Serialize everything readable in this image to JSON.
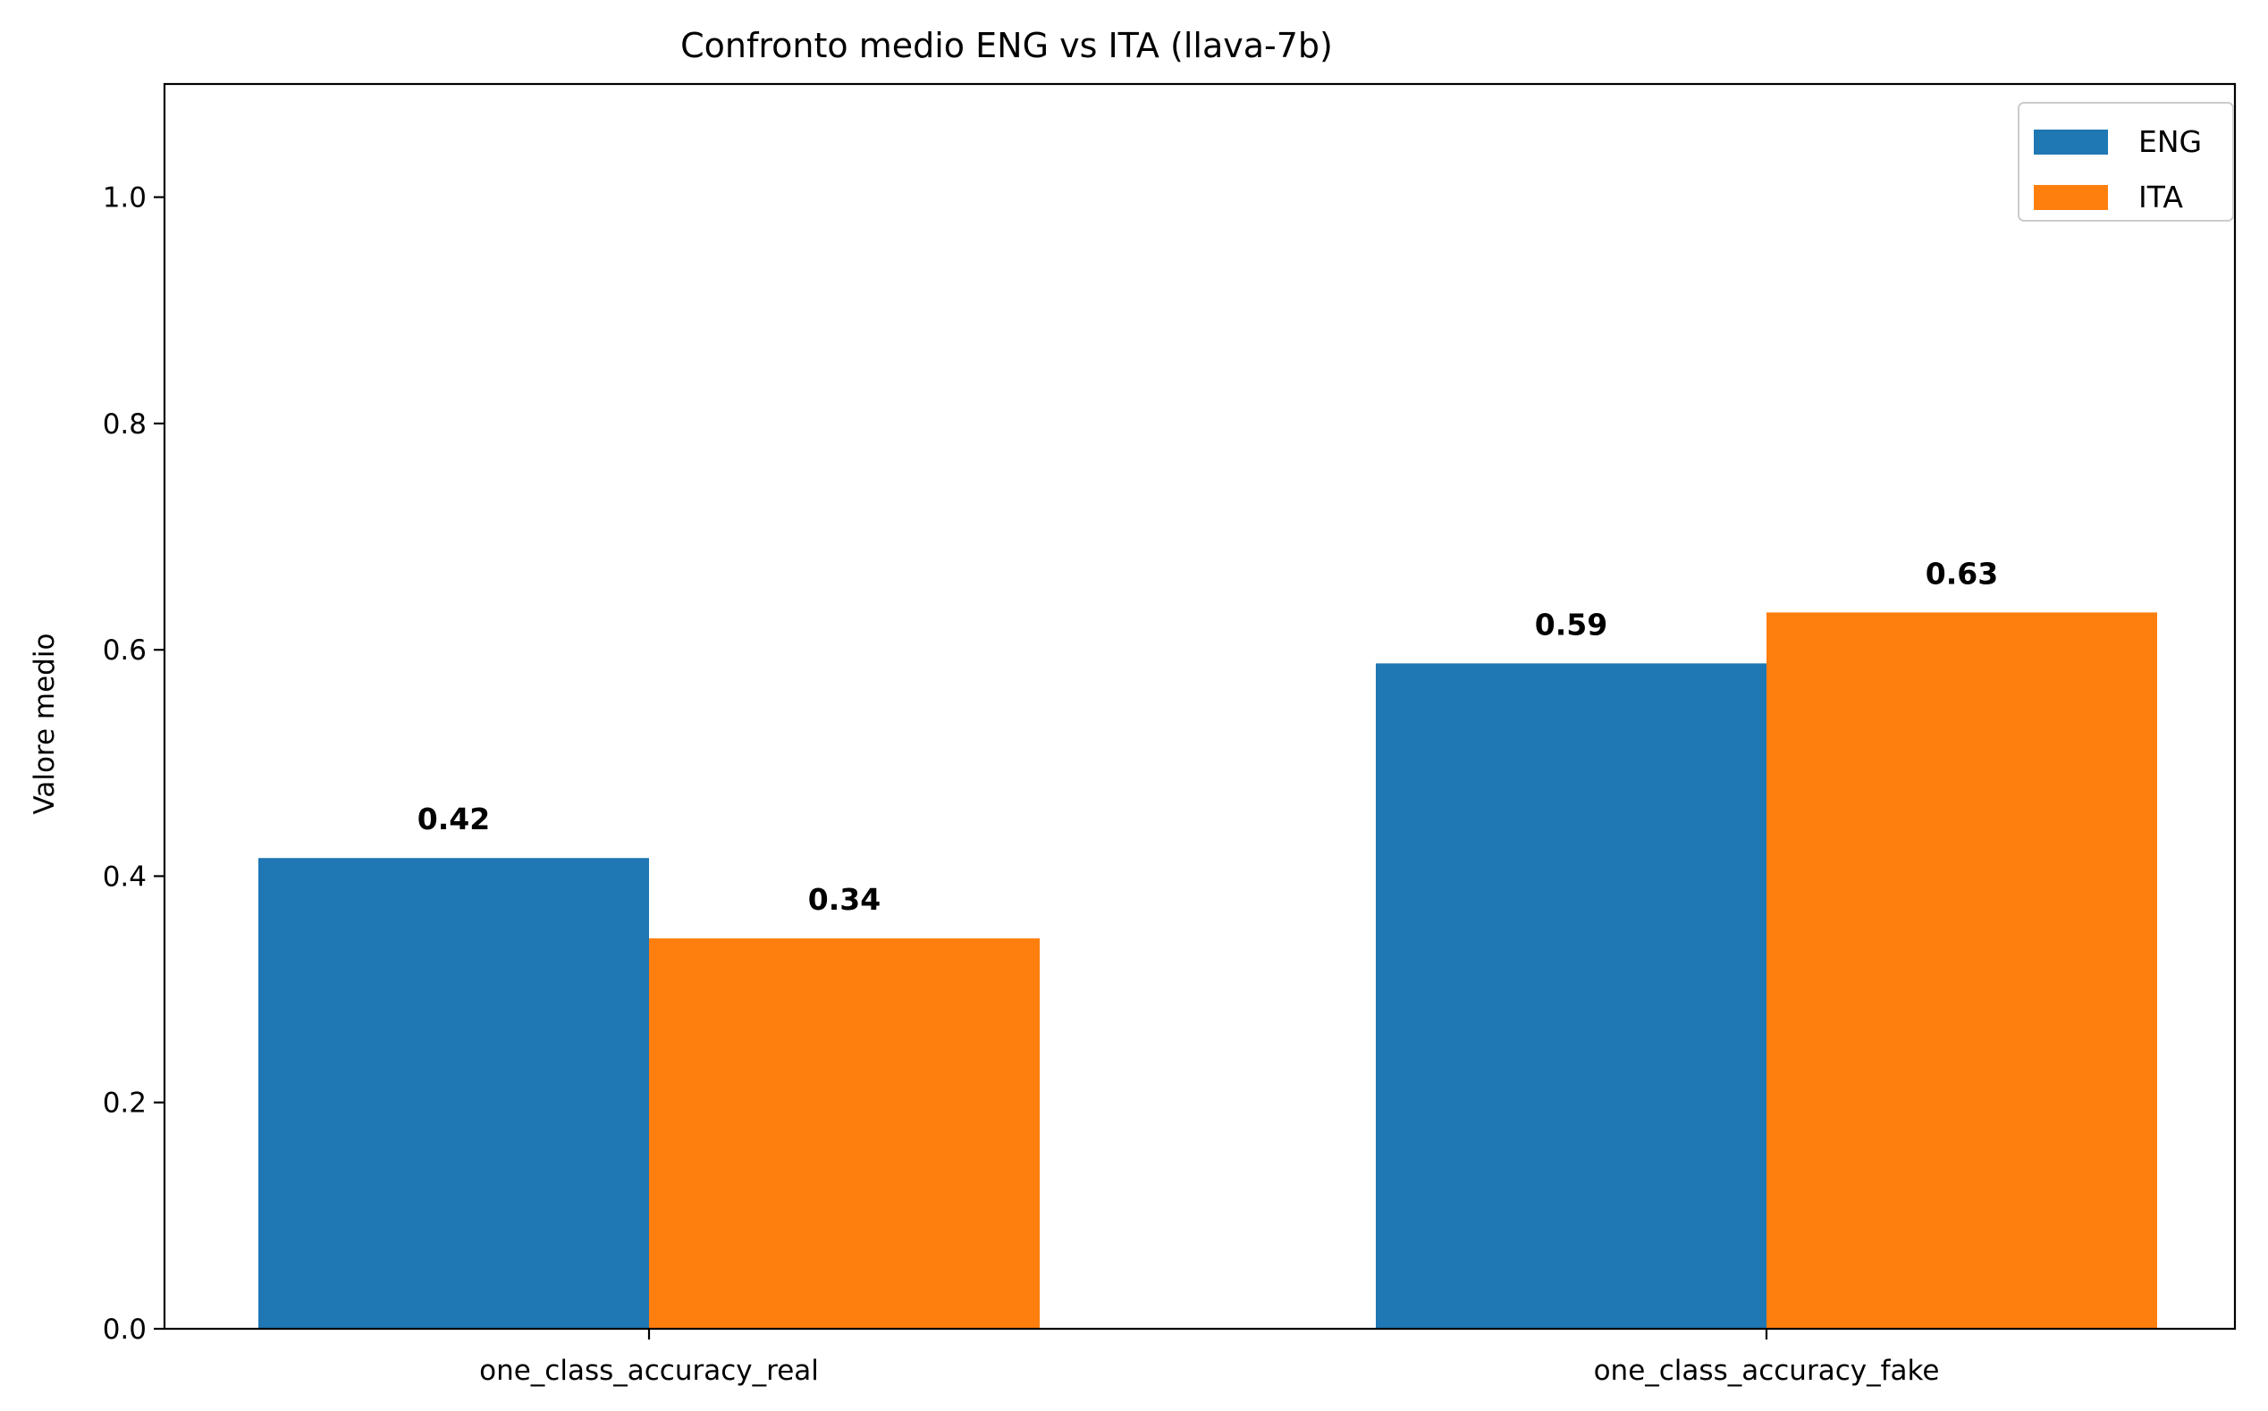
{
  "chart_data": {
    "type": "bar",
    "title": "Confronto medio ENG vs ITA (llava-7b)",
    "xlabel": "",
    "ylabel": "Valore medio",
    "categories": [
      "one_class_accuracy_real",
      "one_class_accuracy_fake"
    ],
    "series": [
      {
        "name": "ENG",
        "values": [
          0.416,
          0.588
        ],
        "labels": [
          "0.42",
          "0.59"
        ],
        "color": "#1f77b4"
      },
      {
        "name": "ITA",
        "values": [
          0.345,
          0.633
        ],
        "labels": [
          "0.34",
          "0.63"
        ],
        "color": "#ff7f0e"
      }
    ],
    "ylim": [
      0,
      1.1
    ],
    "yticks": [
      0.0,
      0.2,
      0.4,
      0.6,
      0.8,
      1.0
    ],
    "ytick_labels": [
      "0.0",
      "0.2",
      "0.4",
      "0.6",
      "0.8",
      "1.0"
    ],
    "grid": false,
    "legend_position": "top-right"
  }
}
